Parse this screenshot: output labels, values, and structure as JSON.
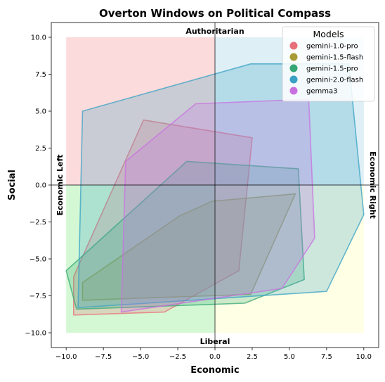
{
  "chart_data": {
    "type": "area",
    "title": "Overton Windows on Political Compass",
    "xlabel": "Economic",
    "ylabel": "Social",
    "xlim": [
      -11,
      11
    ],
    "ylim": [
      -11,
      11
    ],
    "xticks": [
      -10.0,
      -7.5,
      -5.0,
      -2.5,
      0.0,
      2.5,
      5.0,
      7.5,
      10.0
    ],
    "yticks": [
      -10.0,
      -7.5,
      -5.0,
      -2.5,
      0.0,
      2.5,
      5.0,
      7.5,
      10.0
    ],
    "tick_labels": [
      "−10.0",
      "−7.5",
      "−5.0",
      "−2.5",
      "0.0",
      "2.5",
      "5.0",
      "7.5",
      "10.0"
    ],
    "grid": false,
    "quadrant_labels": {
      "top": "Authoritarian",
      "bottom": "Liberal",
      "left": "Economic Left",
      "right": "Economic Right"
    },
    "quadrants": [
      {
        "x": [
          -10,
          0
        ],
        "y": [
          0,
          10
        ],
        "color": "#f4a6a6"
      },
      {
        "x": [
          0,
          10
        ],
        "y": [
          0,
          10
        ],
        "color": "#add8e6"
      },
      {
        "x": [
          -10,
          0
        ],
        "y": [
          -10,
          0
        ],
        "color": "#90ee90"
      },
      {
        "x": [
          0,
          10
        ],
        "y": [
          -10,
          0
        ],
        "color": "#ffffc0"
      }
    ],
    "legend": {
      "title": "Models",
      "position": "top-right"
    },
    "series": [
      {
        "name": "gemini-1.0-pro",
        "color": "#e8707a",
        "points": [
          [
            -9.5,
            -8.8
          ],
          [
            -3.4,
            -8.6
          ],
          [
            1.6,
            -5.8
          ],
          [
            2.5,
            3.2
          ],
          [
            -4.8,
            4.4
          ],
          [
            -9.5,
            -6.2
          ]
        ]
      },
      {
        "name": "gemini-1.5-flash",
        "color": "#a89b36",
        "points": [
          [
            -8.9,
            -6.6
          ],
          [
            -8.9,
            -7.8
          ],
          [
            2.4,
            -7.4
          ],
          [
            5.4,
            -0.6
          ],
          [
            -0.2,
            -1.1
          ],
          [
            -2.4,
            -2.1
          ]
        ]
      },
      {
        "name": "gemini-1.5-pro",
        "color": "#35a774",
        "points": [
          [
            -10.0,
            -5.8
          ],
          [
            -9.3,
            -8.4
          ],
          [
            2.0,
            -8.0
          ],
          [
            6.0,
            -6.4
          ],
          [
            5.6,
            1.1
          ],
          [
            -1.9,
            1.6
          ]
        ]
      },
      {
        "name": "gemini-2.0-flash",
        "color": "#38a1c4",
        "points": [
          [
            -8.9,
            5.0
          ],
          [
            2.4,
            8.2
          ],
          [
            9.0,
            8.2
          ],
          [
            10.0,
            -2.0
          ],
          [
            7.5,
            -7.2
          ],
          [
            -9.2,
            -8.3
          ]
        ]
      },
      {
        "name": "gemma3",
        "color": "#c870e0",
        "points": [
          [
            -6.3,
            -8.6
          ],
          [
            4.5,
            -7.0
          ],
          [
            6.7,
            -3.6
          ],
          [
            6.3,
            5.8
          ],
          [
            -1.3,
            5.5
          ],
          [
            -6.0,
            1.6
          ]
        ]
      }
    ]
  }
}
